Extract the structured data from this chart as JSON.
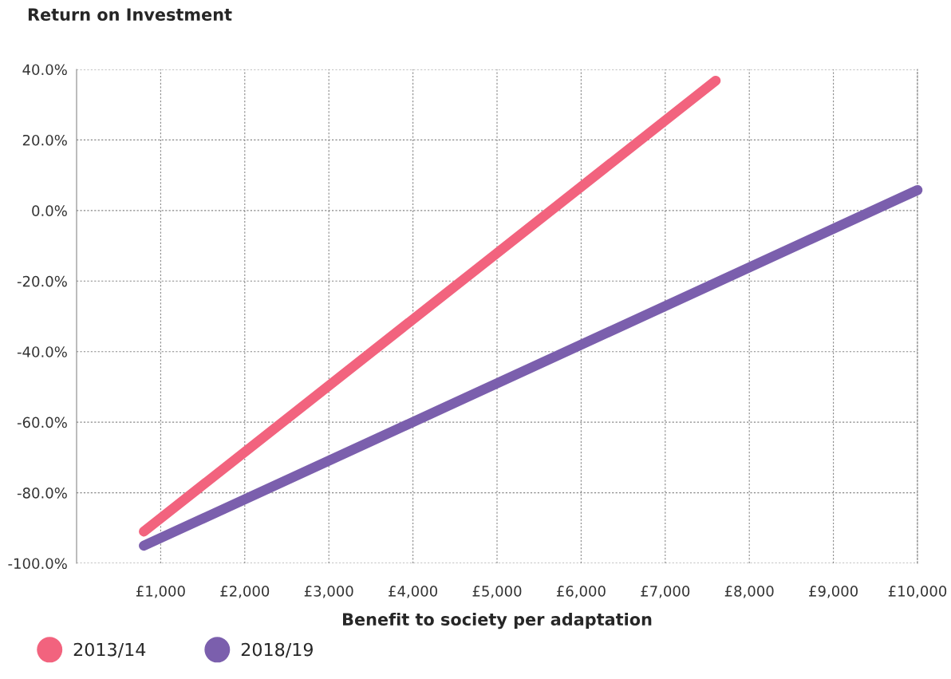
{
  "chart_data": {
    "type": "line",
    "title": "Return on Investment",
    "xlabel": "Benefit to society per adaptation",
    "series": [
      {
        "name": "2013/14",
        "color": "#f2637e",
        "x": [
          800,
          7600
        ],
        "values": [
          -91,
          36.8
        ]
      },
      {
        "name": "2018/19",
        "color": "#7b5fad",
        "x": [
          800,
          10000
        ],
        "values": [
          -95,
          5.8
        ]
      }
    ],
    "xlim": [
      0,
      10000
    ],
    "xticks": [
      {
        "value": 1000,
        "label": "£1,000"
      },
      {
        "value": 2000,
        "label": "£2,000"
      },
      {
        "value": 3000,
        "label": "£3,000"
      },
      {
        "value": 4000,
        "label": "£4,000"
      },
      {
        "value": 5000,
        "label": "£5,000"
      },
      {
        "value": 6000,
        "label": "£6,000"
      },
      {
        "value": 7000,
        "label": "£7,000"
      },
      {
        "value": 8000,
        "label": "£8,000"
      },
      {
        "value": 9000,
        "label": "£9,000"
      },
      {
        "value": 10000,
        "label": "£10,000"
      }
    ],
    "ylim": [
      -100,
      40
    ],
    "yticks": [
      {
        "value": -100,
        "label": "-100.0%"
      },
      {
        "value": -80,
        "label": "-80.0%"
      },
      {
        "value": -60,
        "label": "-60.0%"
      },
      {
        "value": -40,
        "label": "-40.0%"
      },
      {
        "value": -20,
        "label": "-20.0%"
      },
      {
        "value": 0,
        "label": "0.0%"
      },
      {
        "value": 20,
        "label": "20.0%"
      },
      {
        "value": 40,
        "label": "40.0%"
      }
    ],
    "grid": true,
    "legend": "bottom left",
    "line_style": "solid"
  }
}
